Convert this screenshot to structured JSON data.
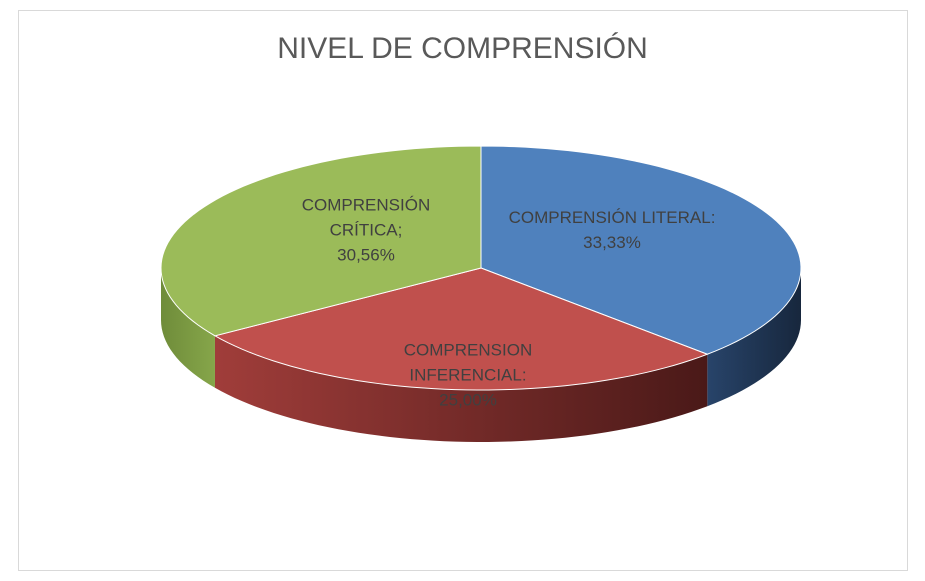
{
  "chart_data": {
    "type": "pie3d",
    "title": "NIVEL DE COMPRENSIÓN",
    "categories": [
      "COMPRENSIÓN LITERAL:",
      "COMPRENSION INFERENCIAL:",
      "COMPRENSIÓN CRÍTICA;"
    ],
    "values": [
      33.33,
      25.0,
      30.56
    ],
    "value_labels": [
      "33,33%",
      "25,00%",
      "30,56%"
    ],
    "colors": [
      "#4f81bd",
      "#c0504d",
      "#9bbb59"
    ]
  }
}
